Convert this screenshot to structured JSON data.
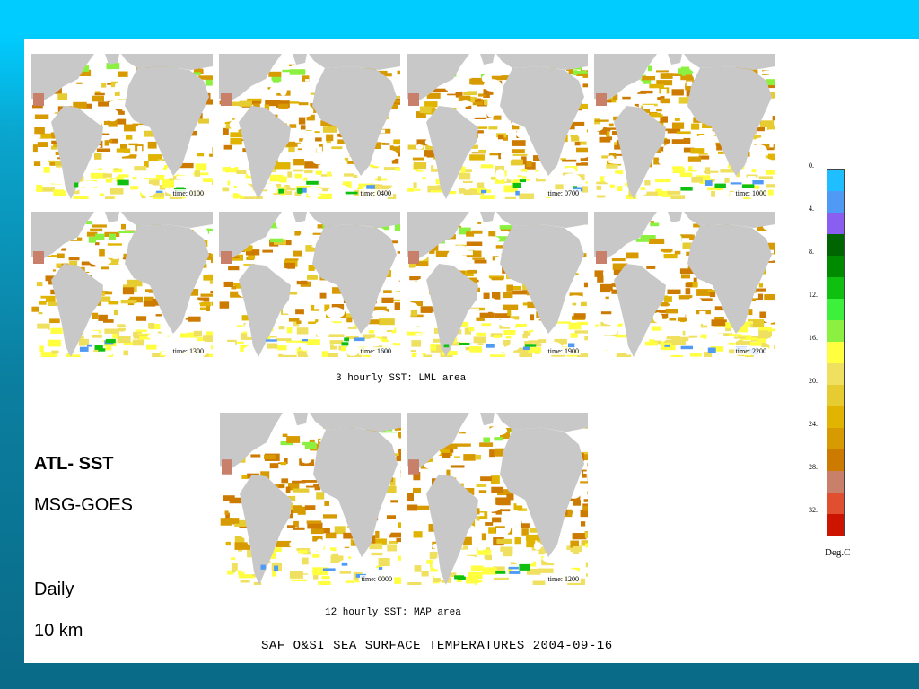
{
  "maps": {
    "three_hourly": [
      {
        "time": "time: 0100"
      },
      {
        "time": "time: 0400"
      },
      {
        "time": "time: 0700"
      },
      {
        "time": "time: 1000"
      },
      {
        "time": "time: 1300"
      },
      {
        "time": "time: 1600"
      },
      {
        "time": "time: 1900"
      },
      {
        "time": "time: 2200"
      }
    ],
    "twelve_hourly": [
      {
        "time": "time: 0000"
      },
      {
        "time": "time: 1200"
      }
    ]
  },
  "captions": {
    "three_hourly": "3 hourly SST: LML area",
    "twelve_hourly": "12 hourly SST: MAP area",
    "main": "SAF O&SI  SEA SURFACE TEMPERATURES  2004-09-16"
  },
  "side_text": {
    "title": "ATL- SST",
    "subtitle": "MSG-GOES",
    "period": "Daily",
    "resolution": "10 km"
  },
  "legend": {
    "ticks": [
      "0.",
      "4.",
      "8.",
      "12.",
      "16.",
      "20.",
      "24.",
      "28.",
      "32."
    ],
    "unit": "Deg.C",
    "colors": [
      "#1ebeff",
      "#4f9af5",
      "#8a5ef0",
      "#006400",
      "#008a00",
      "#10c010",
      "#3cf03c",
      "#8cf040",
      "#ffff40",
      "#f0e060",
      "#e6cc30",
      "#e0b400",
      "#d79a00",
      "#cc7a00",
      "#c8806a",
      "#e05030",
      "#cc1400"
    ]
  }
}
